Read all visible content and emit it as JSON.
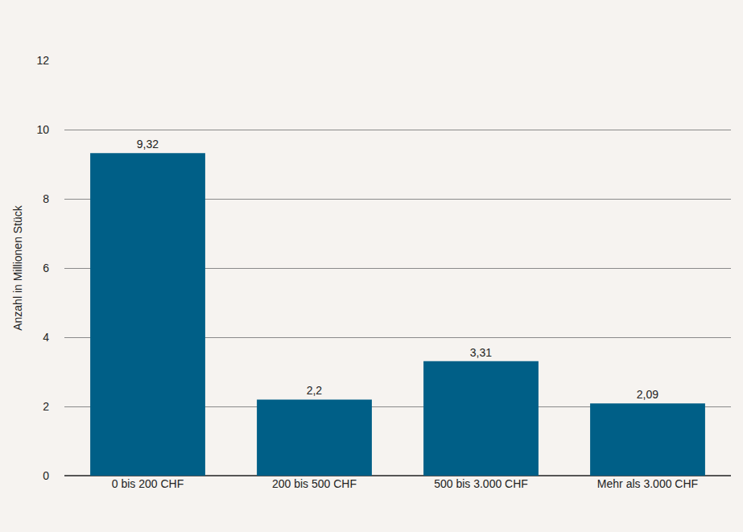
{
  "chart_data": {
    "type": "bar",
    "y_label": "Anzahl in Millionen Stück",
    "categories": [
      "0 bis 200 CHF",
      "200 bis 500 CHF",
      "500 bis 3.000 CHF",
      "Mehr als 3.000 CHF"
    ],
    "values": [
      9.32,
      2.2,
      3.31,
      2.09
    ],
    "value_labels": [
      "9,32",
      "2,2",
      "3,31",
      "2,09"
    ],
    "color": "#005f87",
    "ylim": [
      0,
      12
    ],
    "yticks": [
      0,
      2,
      4,
      6,
      8,
      10,
      12
    ],
    "grid": true,
    "data_labels": true
  }
}
